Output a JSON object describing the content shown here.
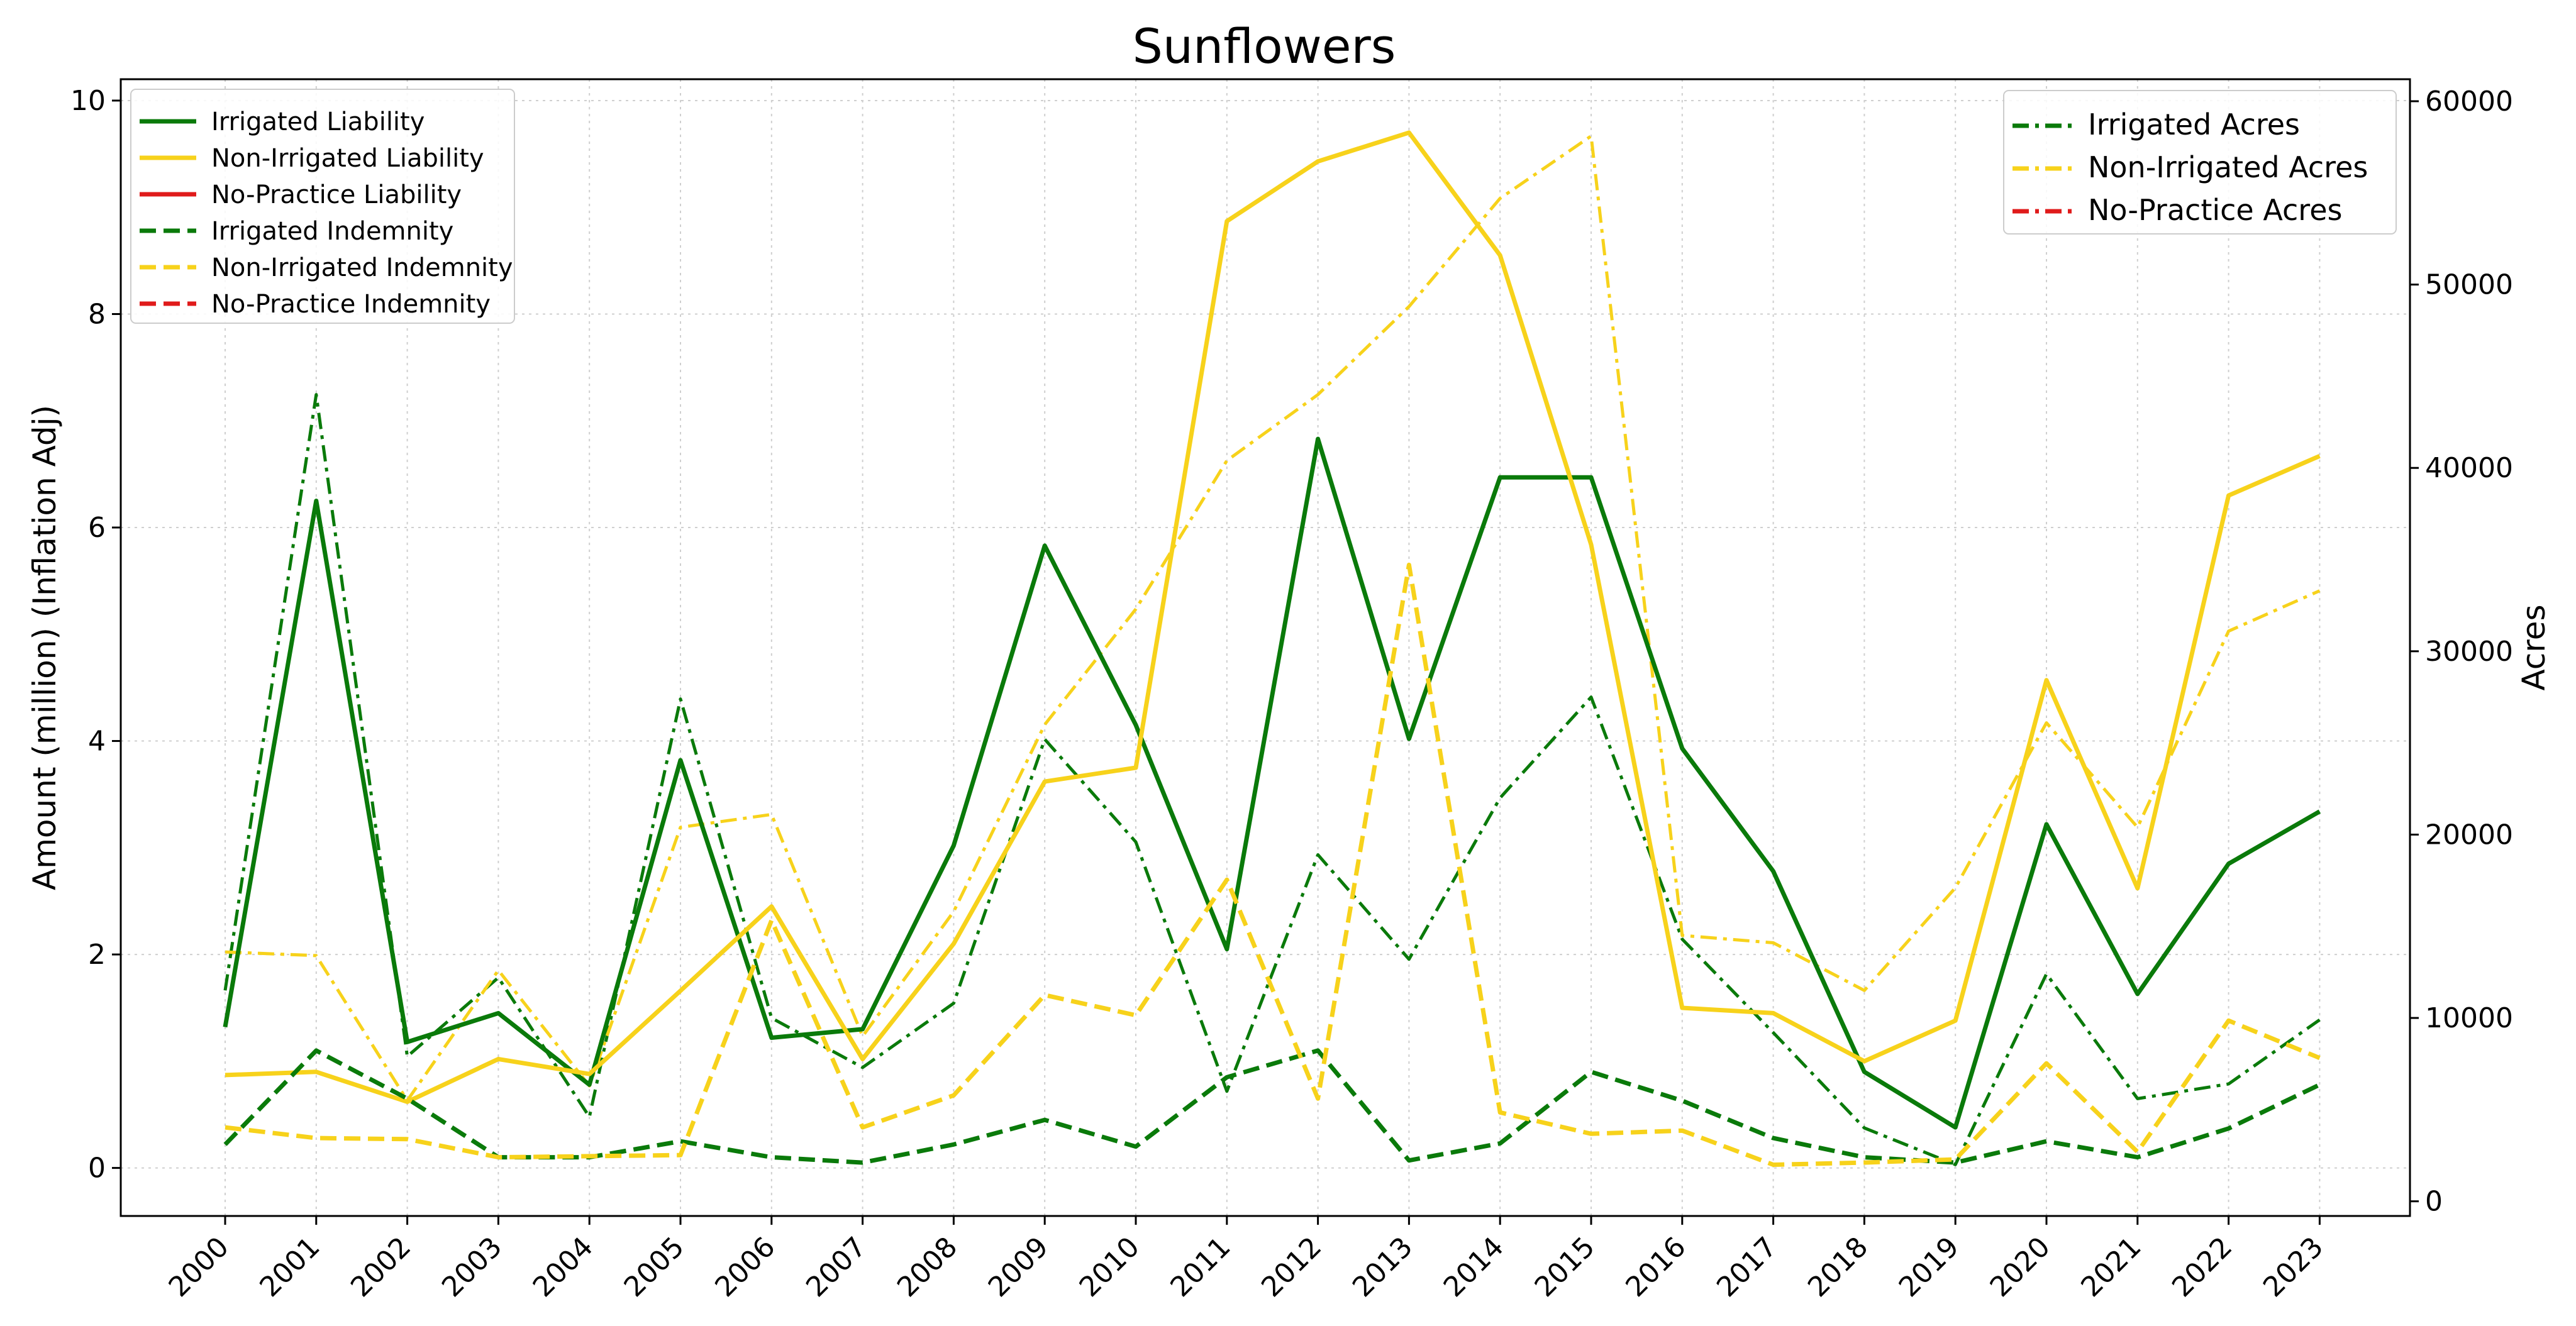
{
  "chart_data": {
    "type": "line",
    "title": "Sunflowers",
    "xlabel": "",
    "ylabel_left": "Amount (million) (Inflation Adj)",
    "ylabel_right": "Acres",
    "x": [
      "2000",
      "2001",
      "2002",
      "2003",
      "2004",
      "2005",
      "2006",
      "2007",
      "2008",
      "2009",
      "2010",
      "2011",
      "2012",
      "2013",
      "2014",
      "2015",
      "2016",
      "2017",
      "2018",
      "2019",
      "2020",
      "2021",
      "2022",
      "2023"
    ],
    "ylim_left": [
      -0.45,
      10.2
    ],
    "ylim_right": [
      -800,
      61200
    ],
    "yticks_left": [
      0,
      2,
      4,
      6,
      8,
      10
    ],
    "yticks_right": [
      0,
      10000,
      20000,
      30000,
      40000,
      50000,
      60000
    ],
    "grid": true,
    "legend_left_position": "upper-left",
    "legend_right_position": "upper-right",
    "colors": {
      "irrigated": "#0a7a0a",
      "non_irrigated": "#f7d21b",
      "no_practice": "#e01b1b"
    },
    "series_left": [
      {
        "name": "Irrigated Liability",
        "color": "#0a7a0a",
        "style": "solid",
        "values": [
          1.32,
          6.25,
          1.18,
          1.45,
          0.78,
          3.82,
          1.22,
          1.3,
          3.02,
          5.83,
          4.15,
          2.05,
          6.83,
          4.02,
          6.47,
          6.47,
          3.93,
          2.78,
          0.9,
          0.38,
          3.22,
          1.63,
          2.85,
          3.34
        ]
      },
      {
        "name": "Non-Irrigated Liability",
        "color": "#f7d21b",
        "style": "solid",
        "values": [
          0.87,
          0.9,
          0.62,
          1.02,
          0.88,
          1.66,
          2.45,
          1.02,
          2.1,
          3.62,
          3.75,
          8.87,
          9.43,
          9.7,
          8.55,
          5.84,
          1.5,
          1.45,
          1.0,
          1.38,
          4.57,
          2.62,
          6.3,
          6.67
        ]
      },
      {
        "name": "No-Practice Liability",
        "color": "#e01b1b",
        "style": "solid",
        "values": []
      },
      {
        "name": "Irrigated Indemnity",
        "color": "#0a7a0a",
        "style": "dashed",
        "values": [
          0.22,
          1.1,
          0.65,
          0.1,
          0.1,
          0.25,
          0.1,
          0.05,
          0.22,
          0.45,
          0.2,
          0.85,
          1.1,
          0.07,
          0.23,
          0.9,
          0.63,
          0.28,
          0.1,
          0.05,
          0.25,
          0.1,
          0.37,
          0.78
        ]
      },
      {
        "name": "Non-Irrigated Indemnity",
        "color": "#f7d21b",
        "style": "dashed",
        "values": [
          0.38,
          0.28,
          0.27,
          0.1,
          0.11,
          0.12,
          2.32,
          0.38,
          0.68,
          1.62,
          1.43,
          2.7,
          0.65,
          5.65,
          0.52,
          0.32,
          0.35,
          0.03,
          0.05,
          0.08,
          0.98,
          0.15,
          1.38,
          1.03
        ]
      },
      {
        "name": "No-Practice Indemnity",
        "color": "#e01b1b",
        "style": "dashed",
        "values": []
      }
    ],
    "series_right": [
      {
        "name": "Irrigated Acres",
        "color": "#0a7a0a",
        "style": "dashdot",
        "values": [
          11500,
          44000,
          7900,
          12200,
          4600,
          27400,
          10000,
          7300,
          10800,
          25200,
          19600,
          6000,
          18900,
          13200,
          22000,
          27500,
          14300,
          9200,
          4000,
          2000,
          12400,
          5600,
          6400,
          9900
        ]
      },
      {
        "name": "Non-Irrigated Acres",
        "color": "#f7d21b",
        "style": "dashdot",
        "values": [
          13600,
          13400,
          5500,
          12600,
          6300,
          20400,
          21100,
          9000,
          15800,
          26000,
          32300,
          40400,
          44000,
          48800,
          54700,
          58100,
          14500,
          14100,
          11500,
          17100,
          26100,
          20400,
          31100,
          33300
        ]
      },
      {
        "name": "No-Practice Acres",
        "color": "#e01b1b",
        "style": "dashdot",
        "values": []
      }
    ]
  }
}
